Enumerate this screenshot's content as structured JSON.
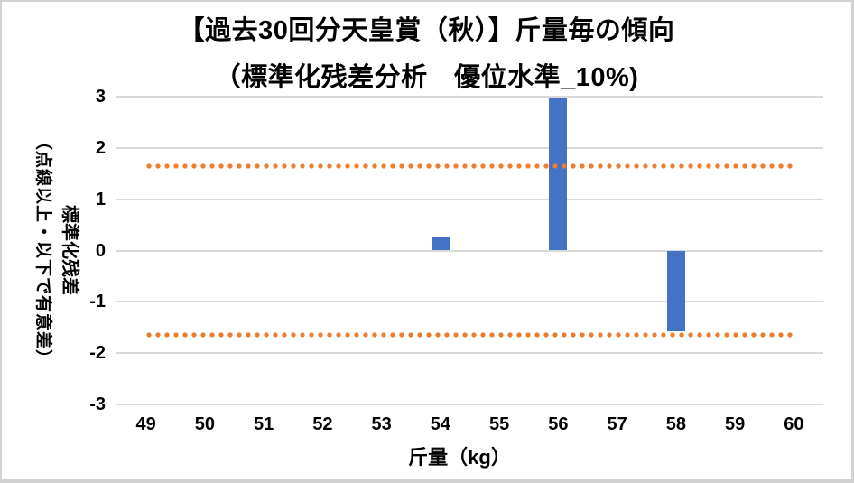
{
  "title": {
    "line1": "【過去30回分天皇賞（秋）】斤量毎の傾向",
    "line2": "（標準化残差分析　優位水準_10%)"
  },
  "axis": {
    "x": {
      "title": "斤量（kg）"
    },
    "y": {
      "title_line1": "標準化残差",
      "title_line2": "（点線以上・以下で有意差）"
    }
  },
  "colors": {
    "bar": "#4472C4",
    "significance_dots": "#ED7D31",
    "gridline": "#D9D9D9",
    "text": "#000000",
    "border": "#D2D2D2",
    "background": "#FFFFFF"
  },
  "chart_data": {
    "type": "bar",
    "title": "【過去30回分天皇賞（秋）】斤量毎の傾向（標準化残差分析　優位水準_10%)",
    "categories": [
      49,
      50,
      51,
      52,
      53,
      54,
      55,
      56,
      57,
      58,
      59,
      60
    ],
    "values": [
      0,
      0,
      0,
      0,
      0,
      0.27,
      0,
      2.97,
      0,
      -1.57,
      0,
      0
    ],
    "significance_upper": 1.645,
    "significance_lower": -1.645,
    "xlabel": "斤量（kg）",
    "ylabel": "標準化残差（点線以上・以下で有意差）",
    "ylim": [
      -3,
      3
    ],
    "yticks": [
      3,
      2,
      1,
      0,
      -1,
      -2,
      -3
    ],
    "grid": "horizontal",
    "legend": "none",
    "bar_color": "#4472C4",
    "significance_line_style": "dotted",
    "significance_line_color": "#ED7D31"
  }
}
